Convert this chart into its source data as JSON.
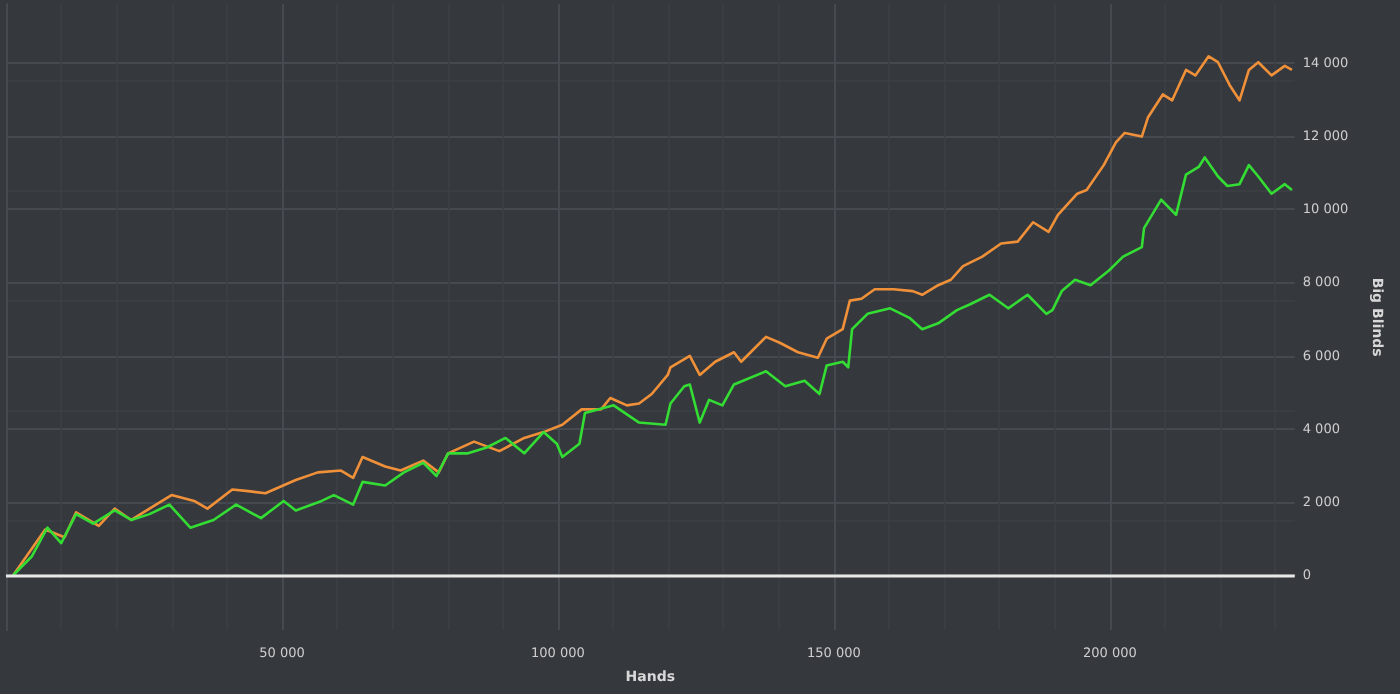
{
  "chart_data": {
    "type": "line",
    "xlabel": "Hands",
    "ylabel": "Big Blinds",
    "xlim": [
      0,
      233500
    ],
    "ylim": [
      -1500,
      15600
    ],
    "xticks": [
      {
        "value": 50000,
        "label": "50 000"
      },
      {
        "value": 100000,
        "label": "100 000"
      },
      {
        "value": 150000,
        "label": "150 000"
      },
      {
        "value": 200000,
        "label": "200 000"
      }
    ],
    "yticks": [
      0,
      {
        "value": 2000,
        "label": "2 000"
      },
      {
        "value": 4000,
        "label": "4 000"
      },
      {
        "value": 6000,
        "label": "6 000"
      },
      {
        "value": 8000,
        "label": "8 000"
      },
      {
        "value": 10000,
        "label": "10 000"
      },
      {
        "value": 12000,
        "label": "12 000"
      },
      {
        "value": 14000,
        "label": "14 000"
      }
    ],
    "grid": true,
    "marker": "none",
    "line_style": "solid",
    "ref_lines": [
      {
        "axis": "y",
        "value": 0,
        "color": "#e8e8e8"
      }
    ],
    "series": [
      {
        "color": "#f0913a",
        "x": [
          1300,
          4700,
          7100,
          10600,
          12700,
          16800,
          19700,
          22700,
          26000,
          30000,
          34100,
          36500,
          41000,
          44300,
          47000,
          52500,
          56500,
          60700,
          62900,
          64600,
          68700,
          71500,
          75600,
          78400,
          80100,
          84800,
          89400,
          93900,
          97400,
          100800,
          104300,
          107800,
          109500,
          112500,
          114700,
          117000,
          119900,
          120400,
          123900,
          125700,
          128500,
          131900,
          133200,
          137700,
          140200,
          143500,
          147100,
          148700,
          151600,
          152900,
          155000,
          157400,
          160800,
          164300,
          166000,
          168900,
          171200,
          173400,
          176900,
          180300,
          183300,
          186100,
          188900,
          190600,
          194100,
          195800,
          198900,
          201100,
          202700,
          205800,
          206900,
          209600,
          211300,
          213800,
          215500,
          217900,
          219600,
          221700,
          223500,
          225200,
          226900,
          229300,
          231700,
          233000
        ],
        "values": [
          0,
          730,
          1250,
          1040,
          1720,
          1350,
          1820,
          1510,
          1820,
          2190,
          2030,
          1820,
          2340,
          2290,
          2240,
          2600,
          2810,
          2860,
          2660,
          3230,
          2970,
          2860,
          3130,
          2810,
          3330,
          3650,
          3390,
          3750,
          3910,
          4110,
          4530,
          4530,
          4840,
          4640,
          4690,
          4950,
          5470,
          5680,
          5990,
          5470,
          5830,
          6090,
          5830,
          6510,
          6350,
          6090,
          5940,
          6460,
          6720,
          7500,
          7550,
          7810,
          7810,
          7760,
          7660,
          7920,
          8070,
          8440,
          8700,
          9060,
          9110,
          9640,
          9380,
          9840,
          10420,
          10520,
          11200,
          11820,
          12080,
          11980,
          12500,
          13130,
          12970,
          13800,
          13650,
          14170,
          14010,
          13390,
          12970,
          13800,
          14010,
          13650,
          13910,
          13800
        ]
      },
      {
        "color": "#33dd33",
        "x": [
          1300,
          4700,
          7500,
          10000,
          12700,
          15800,
          19700,
          22700,
          26000,
          29600,
          33400,
          37600,
          41700,
          46200,
          50300,
          52500,
          57200,
          59400,
          62900,
          64600,
          68700,
          72100,
          75600,
          78000,
          80100,
          83700,
          87100,
          90500,
          93900,
          97400,
          99800,
          100800,
          103900,
          104900,
          110100,
          114700,
          119500,
          120400,
          122900,
          123900,
          125700,
          127400,
          129800,
          131900,
          137700,
          141200,
          144700,
          147400,
          148700,
          151600,
          152600,
          153300,
          156100,
          160200,
          163700,
          166000,
          168900,
          172300,
          174700,
          178200,
          181600,
          185100,
          188500,
          189600,
          191300,
          193700,
          196500,
          199900,
          202400,
          205800,
          206200,
          209300,
          212000,
          213800,
          216100,
          217200,
          219600,
          221300,
          223500,
          225200,
          226900,
          229300,
          231700,
          233000
        ],
        "values": [
          0,
          520,
          1300,
          880,
          1670,
          1410,
          1770,
          1510,
          1670,
          1930,
          1300,
          1510,
          1930,
          1560,
          2030,
          1770,
          2030,
          2190,
          1930,
          2550,
          2450,
          2810,
          3070,
          2710,
          3330,
          3330,
          3490,
          3750,
          3330,
          3910,
          3590,
          3230,
          3590,
          4430,
          4640,
          4170,
          4110,
          4690,
          5160,
          5210,
          4170,
          4790,
          4640,
          5210,
          5570,
          5160,
          5310,
          4950,
          5730,
          5830,
          5680,
          6720,
          7140,
          7290,
          7030,
          6720,
          6880,
          7240,
          7400,
          7660,
          7290,
          7660,
          7140,
          7240,
          7760,
          8070,
          7920,
          8330,
          8700,
          8960,
          9480,
          10260,
          9840,
          10940,
          11150,
          11410,
          10890,
          10630,
          10680,
          11200,
          10890,
          10420,
          10680,
          10520
        ]
      }
    ]
  }
}
